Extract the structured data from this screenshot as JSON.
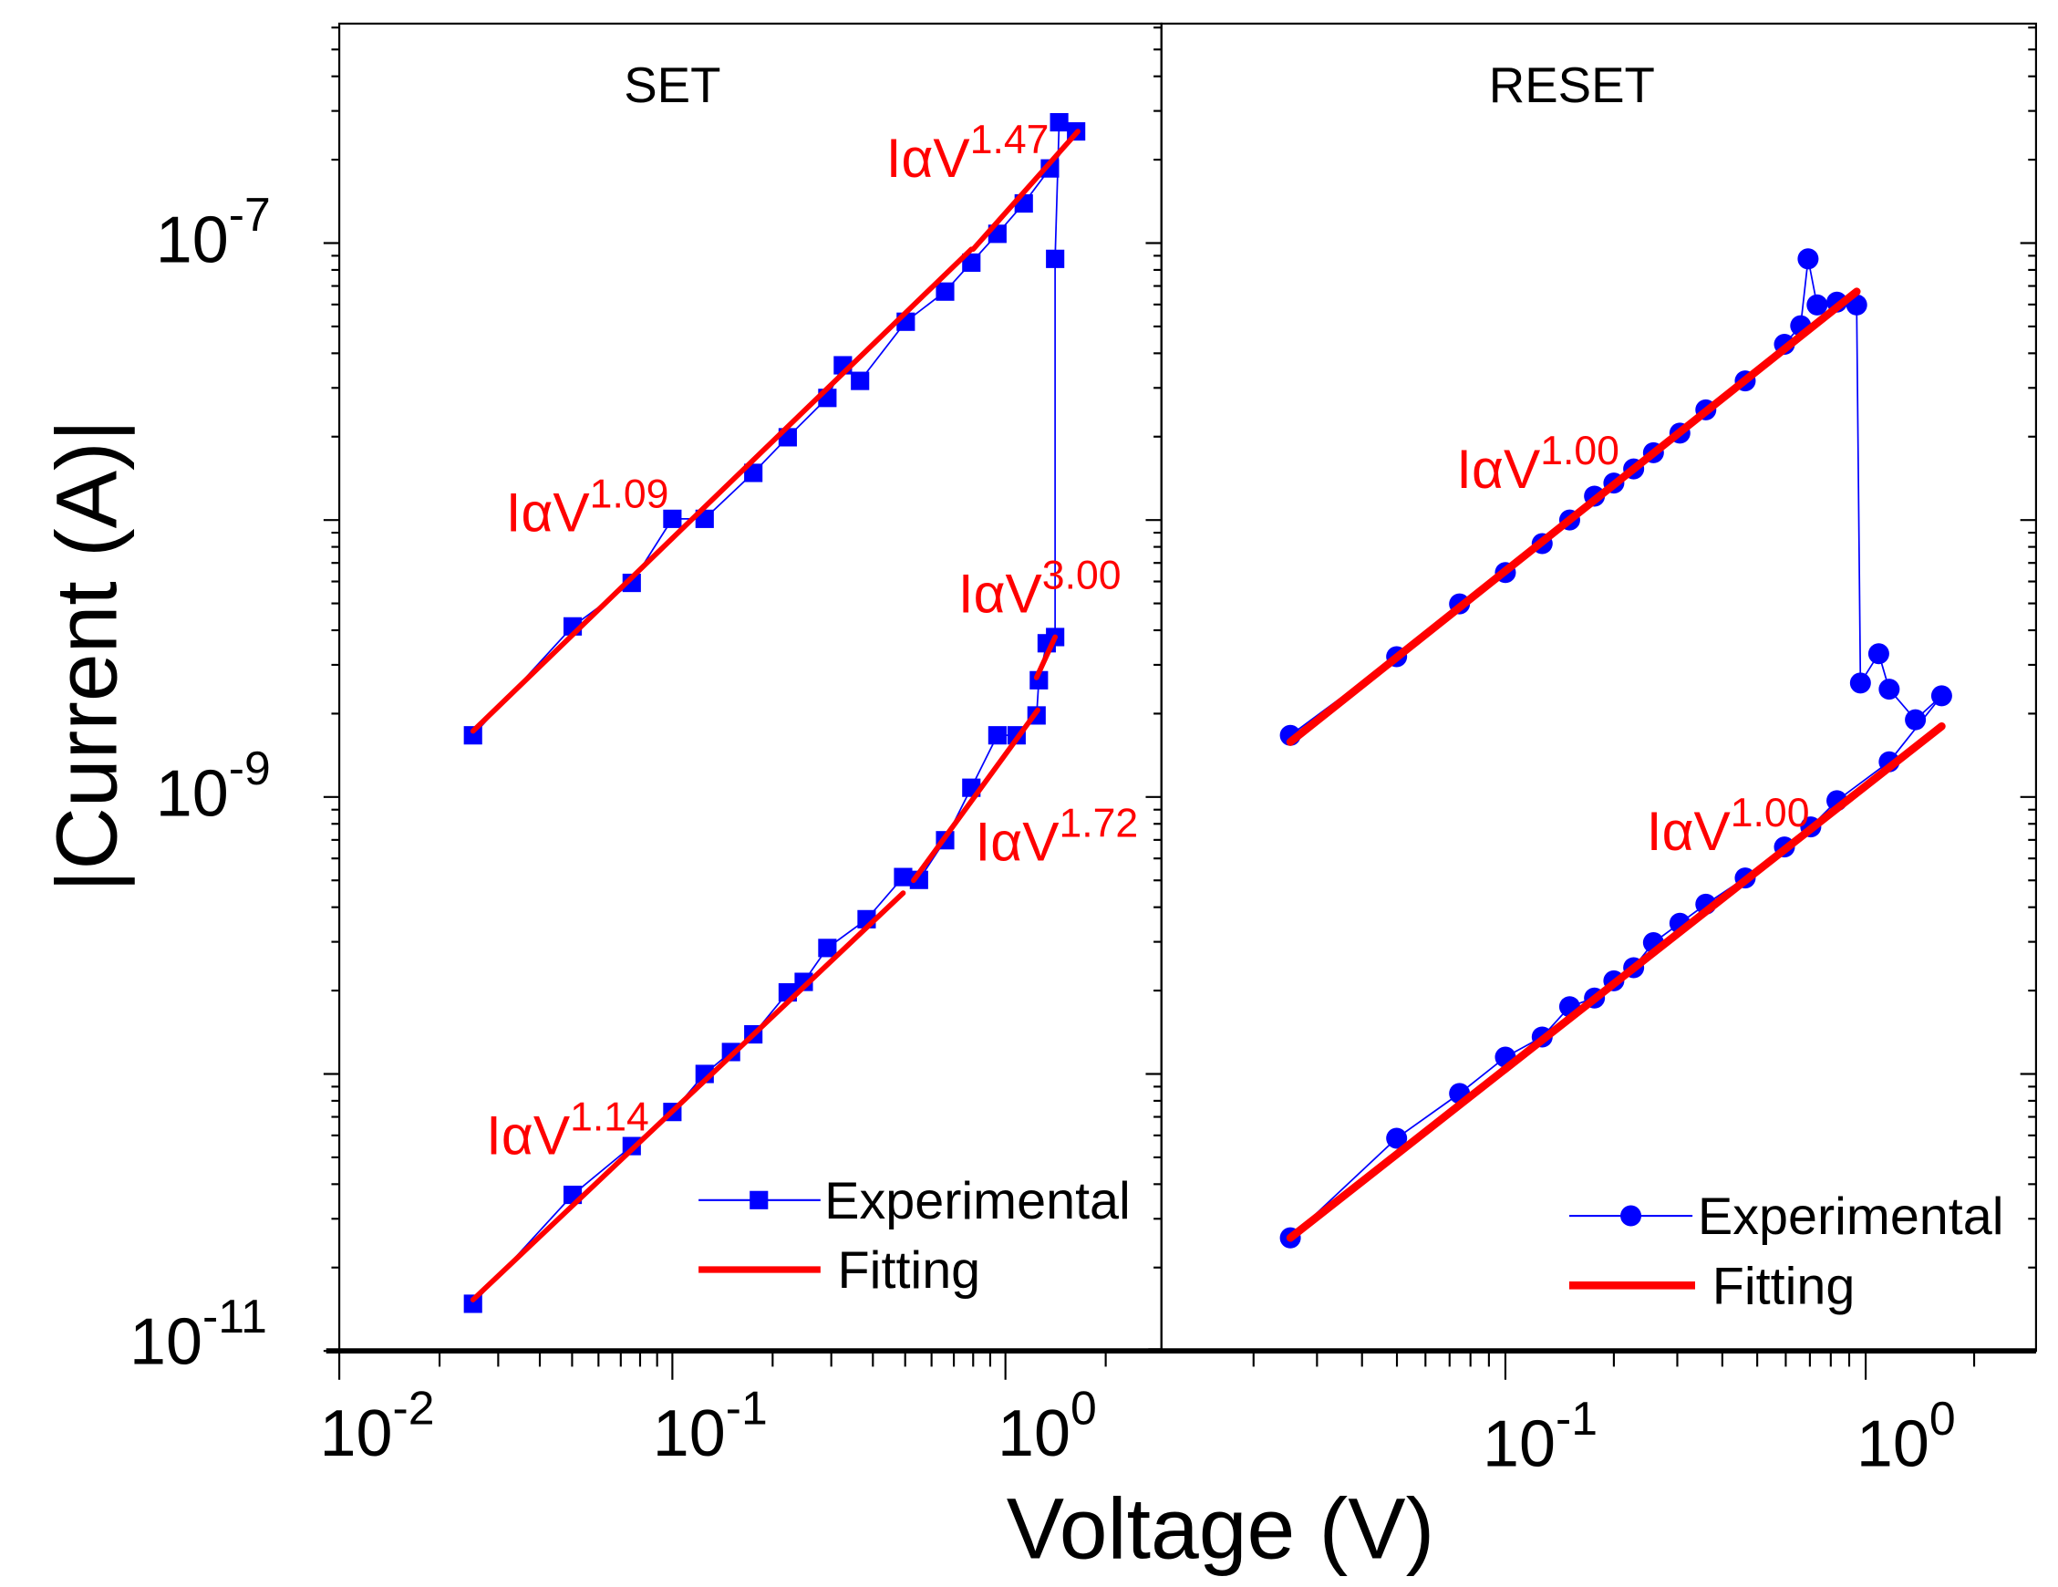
{
  "chart_data": {
    "type": "scatter",
    "xlabel": "Voltage (V)",
    "ylabel": "|Current (A)|",
    "yscale": "log",
    "xscale": "log",
    "ylim": [
      1e-11,
      6.2e-07
    ],
    "y_ticks": [
      {
        "base": "10",
        "exp": "-7",
        "value": 1e-07
      },
      {
        "base": "10",
        "exp": "-9",
        "value": 1e-09
      },
      {
        "base": "10",
        "exp": "-11",
        "value": 1e-11
      }
    ],
    "panels": [
      {
        "title": "SET",
        "xlim": [
          0.01,
          2.94
        ],
        "x_ticks": [
          {
            "base": "10",
            "exp": "-2",
            "value": 0.01
          },
          {
            "base": "10",
            "exp": "-1",
            "value": 0.1
          },
          {
            "base": "10",
            "exp": "0",
            "value": 1
          }
        ],
        "marker": "square",
        "legend": {
          "experimental": "Experimental",
          "fitting": "Fitting",
          "position": "bottom-right"
        },
        "experimental": {
          "x": [
            0.0252,
            0.0502,
            0.0755,
            0.1,
            0.125,
            0.15,
            0.175,
            0.222,
            0.248,
            0.292,
            0.383,
            0.493,
            0.55,
            0.659,
            0.79,
            0.946,
            1.08,
            1.24,
            1.26,
            1.33,
            1.41,
            1.41,
            1.45,
            1.63,
            1.36,
            1.135,
            0.946,
            0.79,
            0.659,
            0.502,
            0.366,
            0.325,
            0.292,
            0.222,
            0.175,
            0.125,
            0.1,
            0.0755,
            0.0502,
            0.0252
          ],
          "y": [
            1.48e-11,
            3.66e-11,
            5.49e-11,
            7.29e-11,
            1e-10,
            1.2e-10,
            1.39e-10,
            1.97e-10,
            2.15e-10,
            2.85e-10,
            3.62e-10,
            5.14e-10,
            5.02e-10,
            6.98e-10,
            1.08e-09,
            1.67e-09,
            1.67e-09,
            1.97e-09,
            2.64e-09,
            3.59e-09,
            3.78e-09,
            8.77e-08,
            2.73e-07,
            2.53e-07,
            1.86e-07,
            1.39e-07,
            1.08e-07,
            8.5e-08,
            6.68e-08,
            5.2e-08,
            3.18e-08,
            3.62e-08,
            2.76e-08,
            1.99e-08,
            1.48e-08,
            1.01e-08,
            1.01e-08,
            5.93e-09,
            4.13e-09,
            1.67e-09
          ]
        },
        "fits": [
          {
            "label": "IαV",
            "exp": "1.09",
            "x": [
              0.0252,
              0.79
            ],
            "y": [
              1.73e-09,
              9.5e-08
            ]
          },
          {
            "label": "IαV",
            "exp": "1.47",
            "x": [
              0.8,
              1.65
            ],
            "y": [
              9.5e-08,
              2.53e-07
            ]
          },
          {
            "label": "IαV",
            "exp": "3.00",
            "x": [
              1.24,
              1.41
            ],
            "y": [
              2.7e-09,
              3.78e-09
            ]
          },
          {
            "label": "IαV",
            "exp": "1.72",
            "x": [
              0.53,
              1.25
            ],
            "y": [
              5e-10,
              2.06e-09
            ]
          },
          {
            "label": "IαV",
            "exp": "1.14",
            "x": [
              0.0252,
              0.493
            ],
            "y": [
              1.53e-11,
              4.5e-10
            ]
          }
        ]
      },
      {
        "title": "RESET",
        "xlim": [
          0.0111,
          2.97
        ],
        "x_ticks": [
          {
            "base": "10",
            "exp": "-1",
            "value": 0.1
          },
          {
            "base": "10",
            "exp": "0",
            "value": 1
          }
        ],
        "marker": "circle",
        "legend": {
          "experimental": "Experimental",
          "fitting": "Fitting",
          "position": "bottom-right"
        },
        "experimental": {
          "x": [
            0.0253,
            0.0499,
            0.0746,
            0.1,
            0.1265,
            0.1508,
            0.1767,
            0.2,
            0.227,
            0.2576,
            0.305,
            0.36,
            0.463,
            0.595,
            0.66,
            0.692,
            0.733,
            0.832,
            0.944,
            0.967,
            1.087,
            1.162,
            1.374,
            1.625,
            1.162,
            0.832,
            0.704,
            0.595,
            0.463,
            0.36,
            0.305,
            0.2576,
            0.227,
            0.2,
            0.1767,
            0.1508,
            0.1265,
            0.1,
            0.0746,
            0.0499,
            0.0253
          ],
          "y": [
            1.67e-09,
            3.21e-09,
            4.98e-09,
            6.46e-09,
            8.22e-09,
            1e-08,
            1.22e-08,
            1.36e-08,
            1.53e-08,
            1.75e-08,
            2.06e-08,
            2.5e-08,
            3.18e-08,
            4.31e-08,
            5.03e-08,
            8.77e-08,
            5.98e-08,
            6.12e-08,
            5.98e-08,
            2.58e-09,
            3.29e-09,
            2.45e-09,
            1.9e-09,
            2.32e-09,
            1.34e-09,
            9.7e-10,
            7.8e-10,
            6.6e-10,
            5.1e-10,
            4.1e-10,
            3.5e-10,
            2.98e-10,
            2.42e-10,
            2.17e-10,
            1.88e-10,
            1.75e-10,
            1.36e-10,
            1.15e-10,
            8.5e-11,
            5.86e-11,
            2.56e-11
          ]
        },
        "fits": [
          {
            "label": "IαV",
            "exp": "1.00",
            "x": [
              0.0253,
              0.944
            ],
            "y": [
              1.58e-09,
              6.68e-08
            ]
          },
          {
            "label": "IαV",
            "exp": "1.00",
            "x": [
              0.0253,
              1.625
            ],
            "y": [
              2.56e-11,
              1.8e-09
            ]
          }
        ]
      }
    ],
    "colors": {
      "experimental": "#0000ff",
      "fitting": "#ff0000",
      "annotation": "#ff0000"
    }
  }
}
